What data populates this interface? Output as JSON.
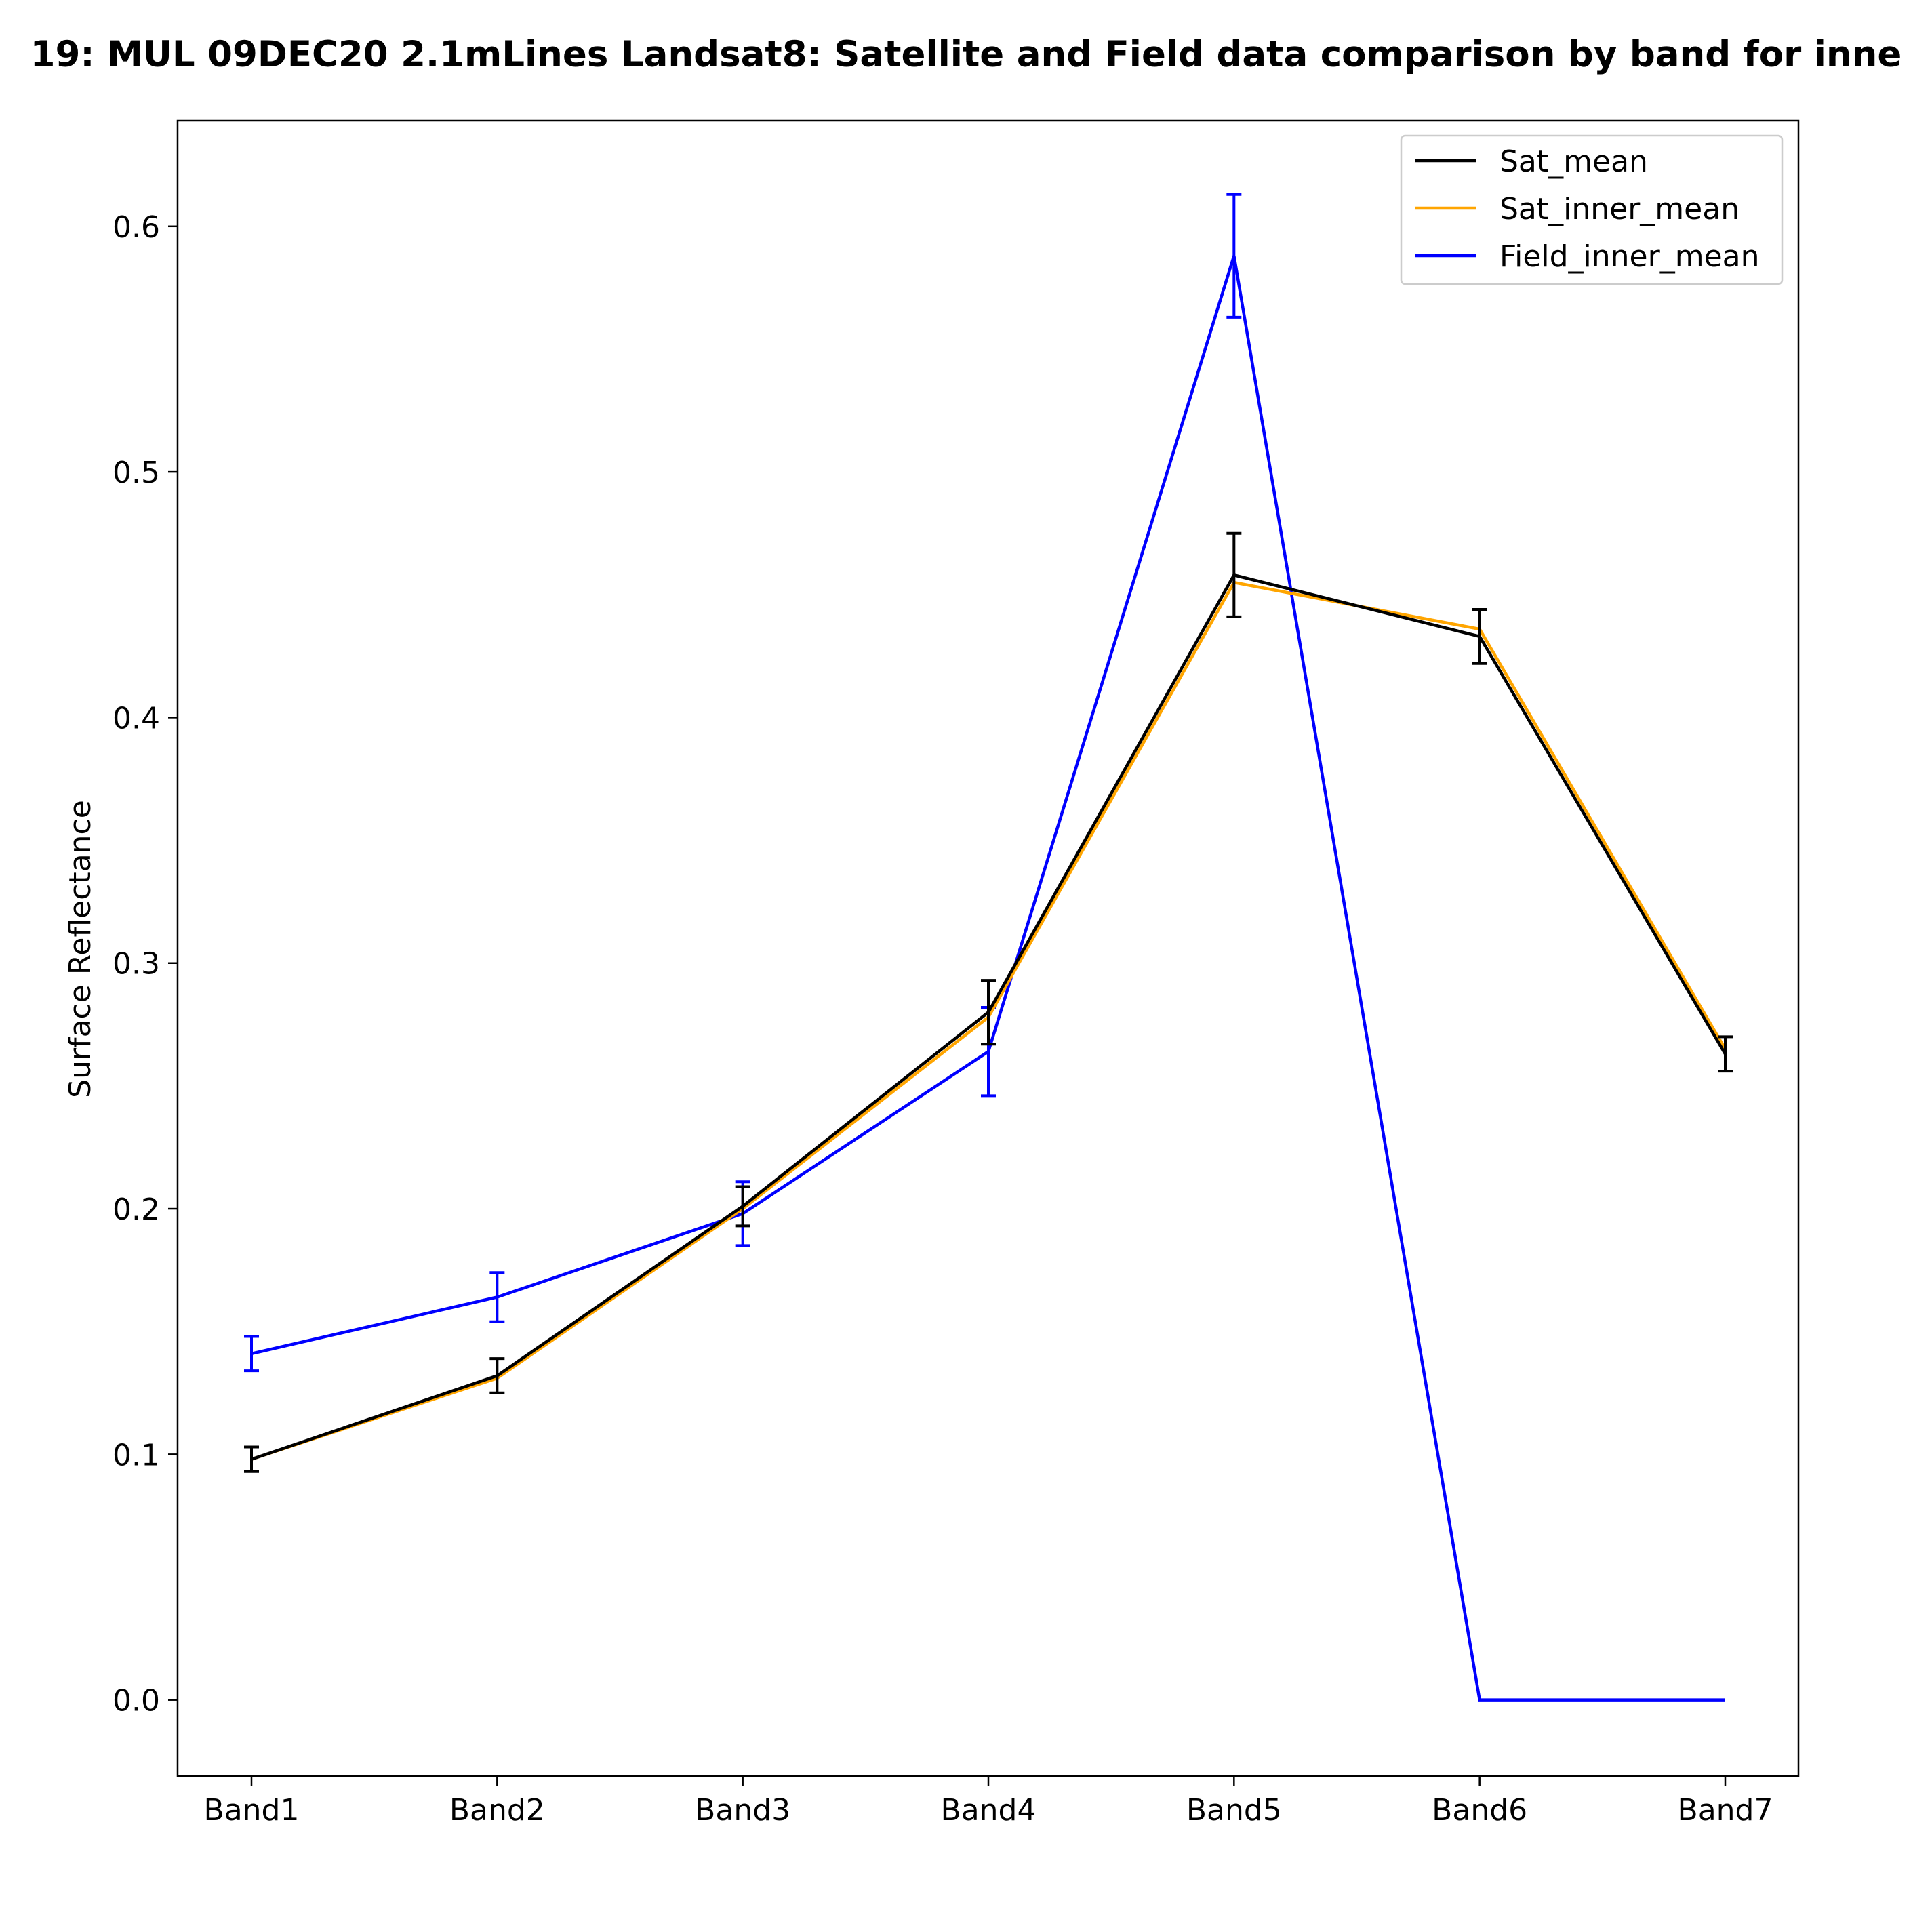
{
  "chart_data": {
    "type": "line",
    "title": "19: MUL 09DEC20 2.1mLines Landsat8: Satellite and Field data comparison by band for inne",
    "xlabel": "",
    "ylabel": "Surface Reflectance",
    "categories": [
      "Band1",
      "Band2",
      "Band3",
      "Band4",
      "Band5",
      "Band6",
      "Band7"
    ],
    "ylim": [
      -0.031,
      0.643
    ],
    "yticks": [
      0.0,
      0.1,
      0.2,
      0.3,
      0.4,
      0.5,
      0.6
    ],
    "ytick_labels": [
      "0.0",
      "0.1",
      "0.2",
      "0.3",
      "0.4",
      "0.5",
      "0.6"
    ],
    "grid": false,
    "legend_position": "top-right",
    "series": [
      {
        "name": "Field_inner_mean",
        "color": "#0000ff",
        "values": [
          0.141,
          0.164,
          0.198,
          0.264,
          0.588,
          0.0,
          0.0
        ],
        "errors": [
          0.007,
          0.01,
          0.013,
          0.018,
          0.025,
          null,
          null
        ]
      },
      {
        "name": "Sat_inner_mean",
        "color": "#ffa500",
        "values": [
          0.098,
          0.131,
          0.2,
          0.278,
          0.455,
          0.436,
          0.265
        ],
        "errors": [
          null,
          null,
          null,
          null,
          null,
          null,
          null
        ]
      },
      {
        "name": "Sat_mean",
        "color": "#000000",
        "values": [
          0.098,
          0.132,
          0.201,
          0.28,
          0.458,
          0.433,
          0.263
        ],
        "errors": [
          0.005,
          0.007,
          0.008,
          0.013,
          0.017,
          0.011,
          0.007
        ]
      }
    ],
    "legend_order": [
      "Sat_mean",
      "Sat_inner_mean",
      "Field_inner_mean"
    ]
  }
}
